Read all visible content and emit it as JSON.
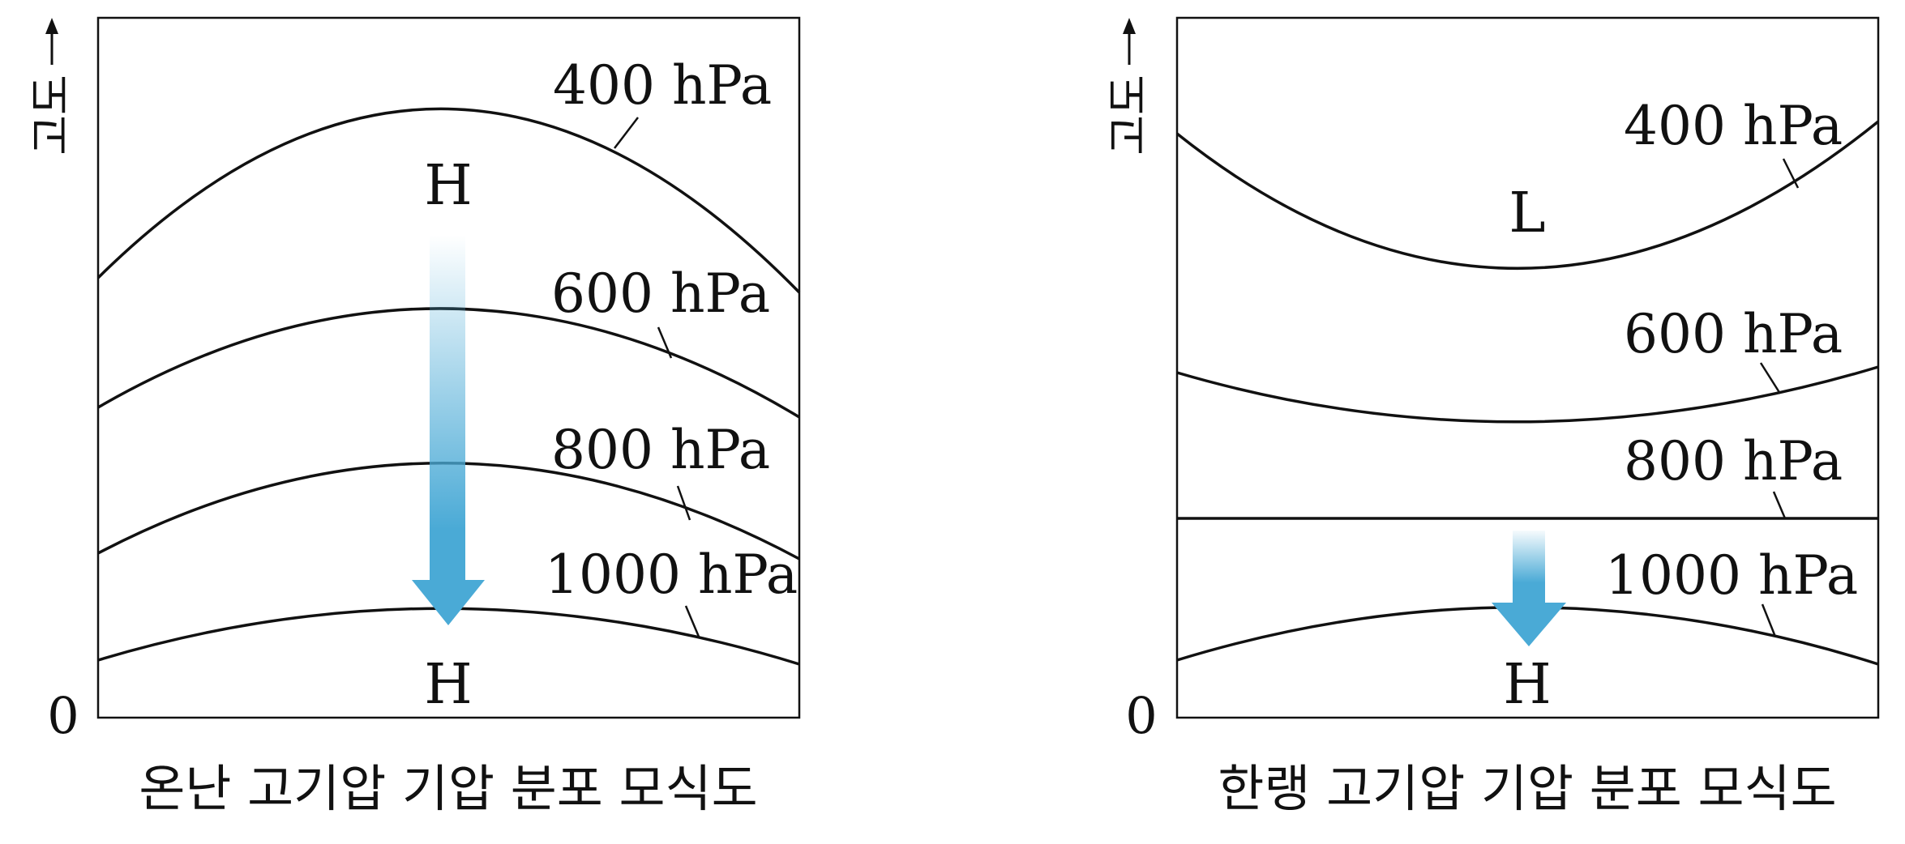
{
  "shared": {
    "altitude_axis_label": "고도",
    "origin_label": "0",
    "arrow_color": "#4aaad6",
    "line_color": "#111111"
  },
  "panels": [
    {
      "id": "warm",
      "caption": "온난 고기압 기압 분포 모식도",
      "upper_pressure_center": "H",
      "surface_pressure_center": "H",
      "isobars": [
        "400 hPa",
        "600 hPa",
        "800 hPa",
        "1000 hPa"
      ]
    },
    {
      "id": "cold",
      "caption": "한랭 고기압 기압 분포 모식도",
      "upper_pressure_center": "L",
      "surface_pressure_center": "H",
      "isobars": [
        "400 hPa",
        "600 hPa",
        "800 hPa",
        "1000 hPa"
      ]
    }
  ]
}
